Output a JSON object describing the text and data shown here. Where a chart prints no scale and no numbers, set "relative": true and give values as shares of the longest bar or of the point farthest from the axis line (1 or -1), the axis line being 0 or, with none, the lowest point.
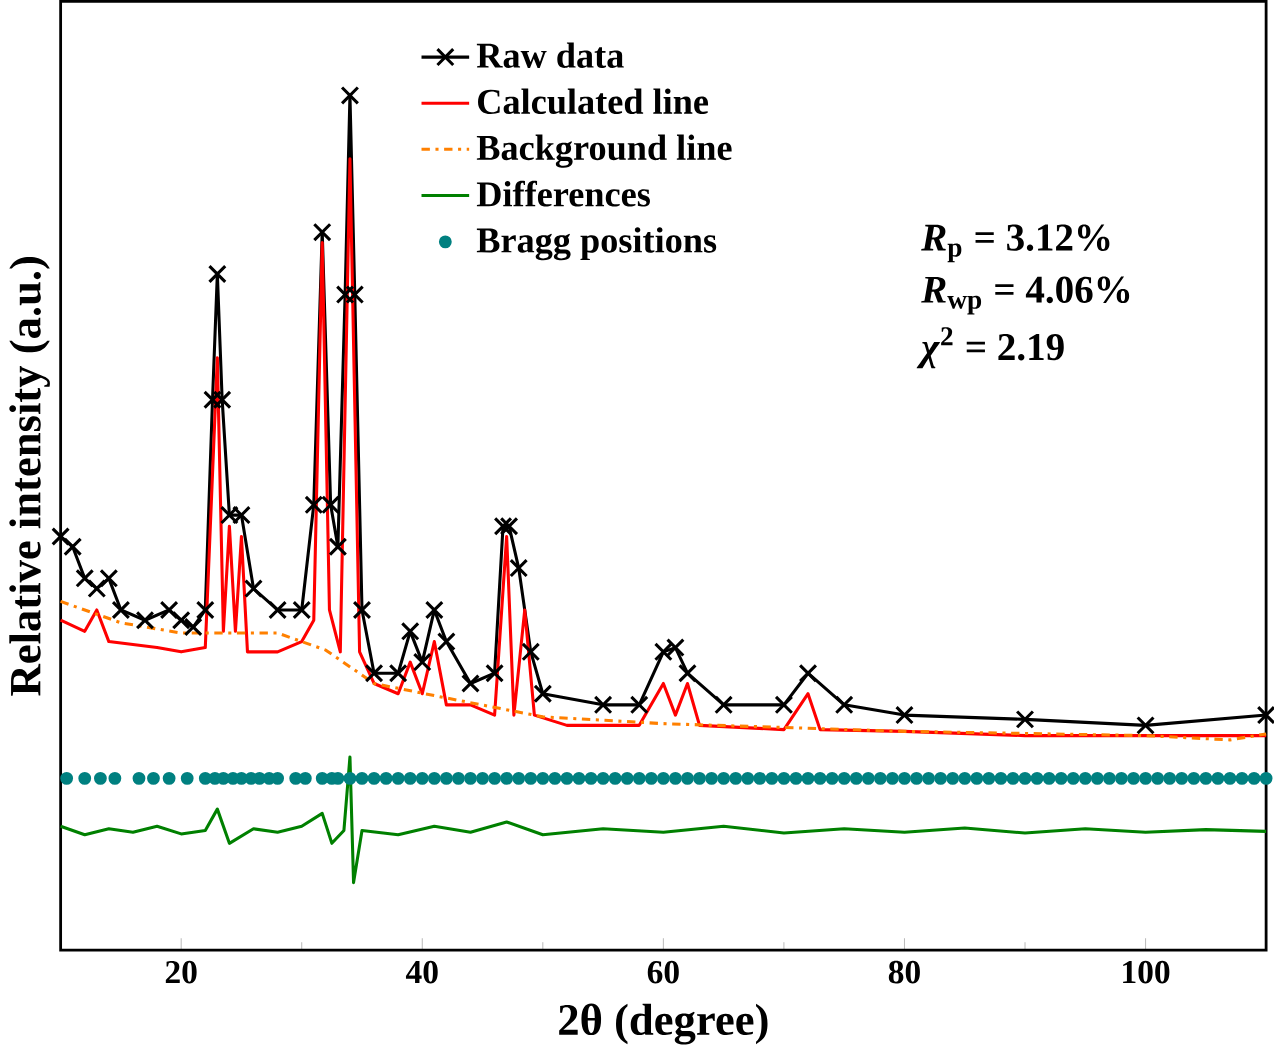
{
  "chart_data": {
    "type": "line",
    "relative": true,
    "xlabel": "2θ (degree)",
    "ylabel": "Relative intensity (a.u.)",
    "xlim": [
      10,
      110
    ],
    "xticks": [
      20,
      40,
      60,
      80,
      100
    ],
    "legend": "top",
    "grid": false,
    "annotations": [
      "*R*$_{p}$ = 3.12%",
      "*R*$_{wp}$ = 4.06%",
      "*χ*$^{2}$ = 2.19"
    ],
    "series": [
      {
        "name": "Raw data",
        "color": "#000000",
        "marker": "cross",
        "line_style": "solid",
        "x": [
          10,
          11,
          12,
          13,
          14,
          15,
          17,
          19,
          20,
          21,
          22,
          22.6,
          23,
          23.4,
          24,
          25,
          26,
          28,
          30,
          31,
          31.7,
          32.4,
          33,
          33.6,
          34,
          34.4,
          35,
          36,
          38,
          39,
          40,
          41,
          42,
          44,
          46,
          46.7,
          47.2,
          48,
          49,
          50,
          55,
          58,
          60,
          61,
          62,
          65,
          70,
          72,
          75,
          80,
          90,
          100,
          110
        ],
        "values": [
          0.484,
          0.472,
          0.435,
          0.423,
          0.435,
          0.398,
          0.386,
          0.398,
          0.386,
          0.378,
          0.398,
          0.644,
          0.791,
          0.644,
          0.509,
          0.509,
          0.423,
          0.398,
          0.398,
          0.521,
          0.84,
          0.521,
          0.472,
          0.767,
          1.0,
          0.767,
          0.398,
          0.324,
          0.324,
          0.373,
          0.337,
          0.398,
          0.361,
          0.312,
          0.324,
          0.496,
          0.496,
          0.447,
          0.349,
          0.3,
          0.287,
          0.287,
          0.349,
          0.354,
          0.324,
          0.287,
          0.287,
          0.324,
          0.287,
          0.275,
          0.27,
          0.263,
          0.275
        ]
      },
      {
        "name": "Calculated line",
        "color": "#ff0000",
        "marker": "none",
        "line_style": "solid",
        "x": [
          10,
          12,
          13,
          14,
          18,
          20,
          22,
          23,
          23.5,
          24,
          24.5,
          25,
          25.5,
          28,
          30,
          31,
          31.7,
          32.3,
          33.2,
          34,
          34.8,
          36,
          38,
          39,
          40,
          41,
          42,
          44,
          46,
          47,
          47.6,
          48.5,
          49.3,
          52,
          58,
          60,
          61,
          62,
          63,
          70,
          72,
          73,
          80,
          90,
          100,
          110
        ],
        "values": [
          0.386,
          0.373,
          0.398,
          0.361,
          0.354,
          0.349,
          0.354,
          0.693,
          0.373,
          0.496,
          0.373,
          0.484,
          0.349,
          0.349,
          0.361,
          0.386,
          0.828,
          0.398,
          0.349,
          0.926,
          0.349,
          0.312,
          0.3,
          0.337,
          0.3,
          0.361,
          0.287,
          0.287,
          0.275,
          0.484,
          0.275,
          0.398,
          0.275,
          0.263,
          0.263,
          0.312,
          0.275,
          0.312,
          0.263,
          0.258,
          0.3,
          0.258,
          0.256,
          0.251,
          0.251,
          0.251
        ]
      },
      {
        "name": "Background line",
        "color": "#ff8000",
        "marker": "none",
        "line_style": "dashdot",
        "x": [
          10,
          15,
          20,
          28,
          32,
          36,
          42,
          50,
          60,
          80,
          100,
          107,
          110
        ],
        "values": [
          0.408,
          0.383,
          0.371,
          0.371,
          0.351,
          0.312,
          0.295,
          0.273,
          0.265,
          0.256,
          0.251,
          0.246,
          0.253
        ]
      },
      {
        "name": "Differences",
        "color": "#008000",
        "marker": "none",
        "line_style": "solid",
        "x": [
          10,
          12,
          14,
          16,
          18,
          20,
          22,
          23,
          24,
          26,
          28,
          30,
          31.7,
          32.5,
          33.5,
          34,
          34.3,
          35,
          38,
          41,
          44,
          47,
          50,
          55,
          60,
          65,
          70,
          75,
          80,
          85,
          90,
          95,
          100,
          105,
          110
        ],
        "values": [
          0.145,
          0.135,
          0.142,
          0.138,
          0.145,
          0.136,
          0.14,
          0.165,
          0.125,
          0.142,
          0.138,
          0.145,
          0.16,
          0.125,
          0.14,
          0.226,
          0.079,
          0.14,
          0.135,
          0.145,
          0.138,
          0.15,
          0.135,
          0.142,
          0.138,
          0.145,
          0.137,
          0.142,
          0.138,
          0.143,
          0.137,
          0.142,
          0.138,
          0.141,
          0.139
        ]
      },
      {
        "name": "Bragg positions",
        "type": "scatter",
        "marker": "circle",
        "color": "#008080",
        "x": [
          10.5,
          12,
          13.3,
          14.5,
          16.5,
          17.7,
          19,
          20.5,
          22,
          22.8,
          23.5,
          24.3,
          25,
          25.8,
          26.5,
          27.3,
          28,
          29.5,
          30.3,
          31.7,
          32.5,
          33,
          34,
          35,
          36,
          37,
          38,
          39,
          40,
          41,
          42,
          43,
          44,
          45,
          46,
          47,
          48,
          49,
          50,
          51,
          52,
          53,
          54,
          55,
          56,
          57,
          58,
          59,
          60,
          61,
          62,
          63,
          64,
          65,
          66,
          67,
          68,
          69,
          70,
          71,
          72,
          73,
          74,
          75,
          76,
          77,
          78,
          79,
          80,
          81,
          82,
          83,
          84,
          85,
          86,
          87,
          88,
          89,
          90,
          91,
          92,
          93,
          94,
          95,
          96,
          97,
          98,
          99,
          100,
          101,
          102,
          103,
          104,
          105,
          106,
          107,
          108,
          109,
          110
        ],
        "values": [
          0.201,
          0.201,
          0.201,
          0.201,
          0.201,
          0.201,
          0.201,
          0.201,
          0.201,
          0.201,
          0.201,
          0.201,
          0.201,
          0.201,
          0.201,
          0.201,
          0.201,
          0.201,
          0.201,
          0.201,
          0.201,
          0.201,
          0.201,
          0.201,
          0.201,
          0.201,
          0.201,
          0.201,
          0.201,
          0.201,
          0.201,
          0.201,
          0.201,
          0.201,
          0.201,
          0.201,
          0.201,
          0.201,
          0.201,
          0.201,
          0.201,
          0.201,
          0.201,
          0.201,
          0.201,
          0.201,
          0.201,
          0.201,
          0.201,
          0.201,
          0.201,
          0.201,
          0.201,
          0.201,
          0.201,
          0.201,
          0.201,
          0.201,
          0.201,
          0.201,
          0.201,
          0.201,
          0.201,
          0.201,
          0.201,
          0.201,
          0.201,
          0.201,
          0.201,
          0.201,
          0.201,
          0.201,
          0.201,
          0.201,
          0.201,
          0.201,
          0.201,
          0.201,
          0.201,
          0.201,
          0.201,
          0.201,
          0.201,
          0.201,
          0.201,
          0.201,
          0.201,
          0.201,
          0.201,
          0.201,
          0.201,
          0.201,
          0.201,
          0.201,
          0.201,
          0.201,
          0.201,
          0.201,
          0.201
        ]
      }
    ]
  }
}
